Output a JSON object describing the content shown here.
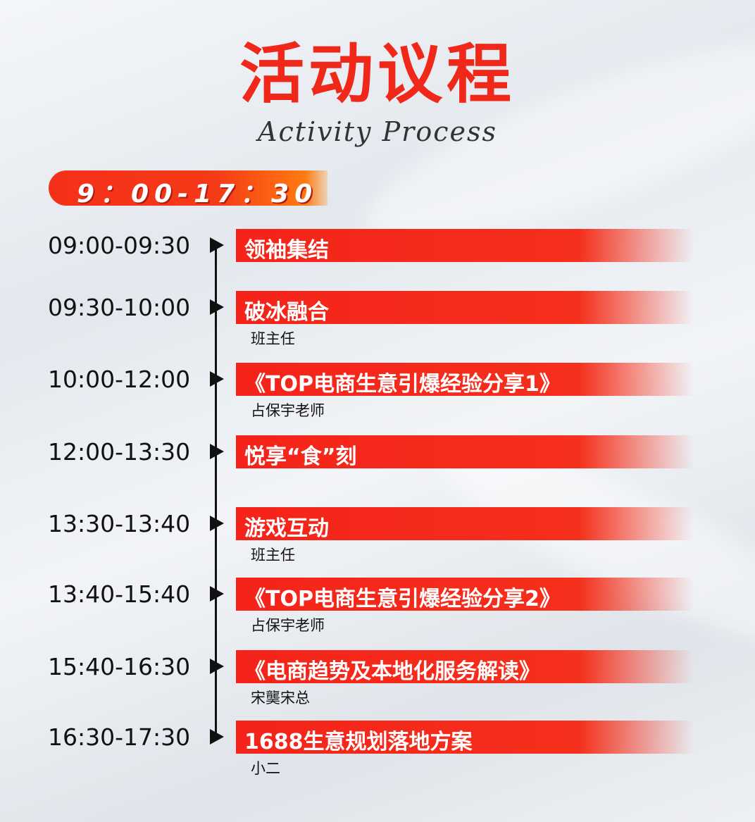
{
  "header": {
    "title": "活动议程",
    "subtitle": "Activity Process",
    "time_range": "9：00-17：30"
  },
  "agenda": [
    {
      "time": "09:00-09:30",
      "title": "领袖集结",
      "speaker": ""
    },
    {
      "time": "09:30-10:00",
      "title": "破冰融合",
      "speaker": "班主任"
    },
    {
      "time": "10:00-12:00",
      "title": "《TOP电商生意引爆经验分享1》",
      "speaker": "占保宇老师"
    },
    {
      "time": "12:00-13:30",
      "title": "悦享“食”刻",
      "speaker": ""
    },
    {
      "time": "13:30-13:40",
      "title": "游戏互动",
      "speaker": "班主任"
    },
    {
      "time": "13:40-15:40",
      "title": "《TOP电商生意引爆经验分享2》",
      "speaker": "占保宇老师"
    },
    {
      "time": "15:40-16:30",
      "title": "《电商趋势及本地化服务解读》",
      "speaker": "宋龑宋总"
    },
    {
      "time": "16:30-17:30",
      "title": "1688生意规划落地方案",
      "speaker": "小二"
    }
  ],
  "colors": {
    "accent": "#f5231a",
    "text": "#111111"
  }
}
